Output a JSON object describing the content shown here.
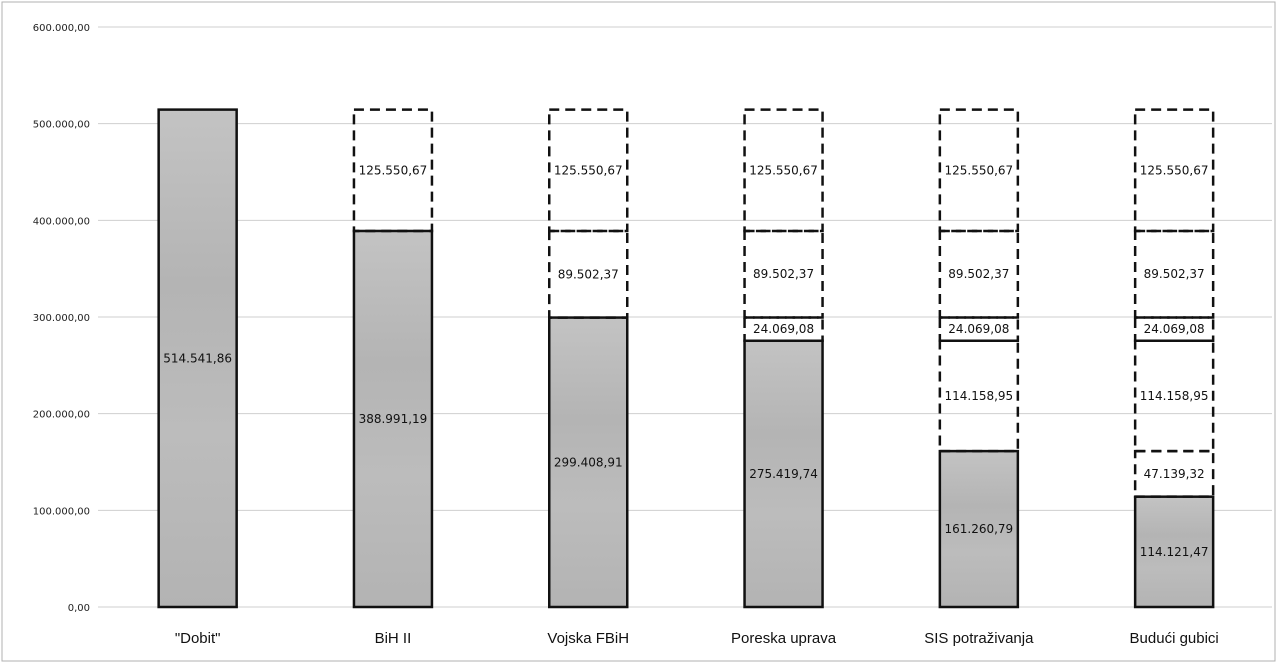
{
  "chart_data": {
    "type": "bar",
    "stacked": true,
    "title": "",
    "xlabel": "",
    "ylabel": "",
    "ylim": [
      0,
      600000
    ],
    "yticks": [
      0,
      100000,
      200000,
      300000,
      400000,
      500000,
      600000
    ],
    "ytick_labels": [
      "0,00",
      "100.000,00",
      "200.000,00",
      "300.000,00",
      "400.000,00",
      "500.000,00",
      "600.000,00"
    ],
    "grid": true,
    "legend": "none",
    "categories": [
      "\"Dobit\"",
      "BiH II",
      "Vojska FBiH",
      "Poreska uprava",
      "SIS potraživanja",
      "Budući gubici"
    ],
    "series": [
      {
        "style": "solid-gray",
        "values": [
          514541.86,
          388991.19,
          299408.91,
          275419.74,
          161260.79,
          114121.47
        ],
        "labels": [
          "514.541,86",
          "388.991,19",
          "299.408,91",
          "275.419,74",
          "161.260,79",
          "114.121,47"
        ]
      },
      {
        "style": "dashed",
        "values": [
          0,
          0,
          0,
          0,
          0,
          47139.32
        ],
        "labels": [
          "",
          "",
          "",
          "",
          "",
          "47.139,32"
        ]
      },
      {
        "style": "dashed",
        "values": [
          0,
          0,
          0,
          0,
          114158.95,
          114158.95
        ],
        "labels": [
          "",
          "",
          "",
          "",
          "114.158,95",
          "114.158,95"
        ]
      },
      {
        "style": "dashed",
        "values": [
          0,
          0,
          0,
          24069.08,
          24069.08,
          24069.08
        ],
        "labels": [
          "",
          "",
          "",
          "24.069,08",
          "24.069,08",
          "24.069,08"
        ]
      },
      {
        "style": "dashed",
        "values": [
          0,
          0,
          89502.37,
          89502.37,
          89502.37,
          89502.37
        ],
        "labels": [
          "",
          "",
          "89.502,37",
          "89.502,37",
          "89.502,37",
          "89.502,37"
        ]
      },
      {
        "style": "dashed",
        "values": [
          0,
          125550.67,
          125550.67,
          125550.67,
          125550.67,
          125550.67
        ],
        "labels": [
          "",
          "125.550,67",
          "125.550,67",
          "125.550,67",
          "125.550,67",
          "125.550,67"
        ]
      }
    ]
  },
  "colors": {
    "bar_fill": "#b9b9b9",
    "bar_stroke": "#111111",
    "grid": "#cfcfcf",
    "frame": "#b0b0b0",
    "background": "#ffffff"
  }
}
